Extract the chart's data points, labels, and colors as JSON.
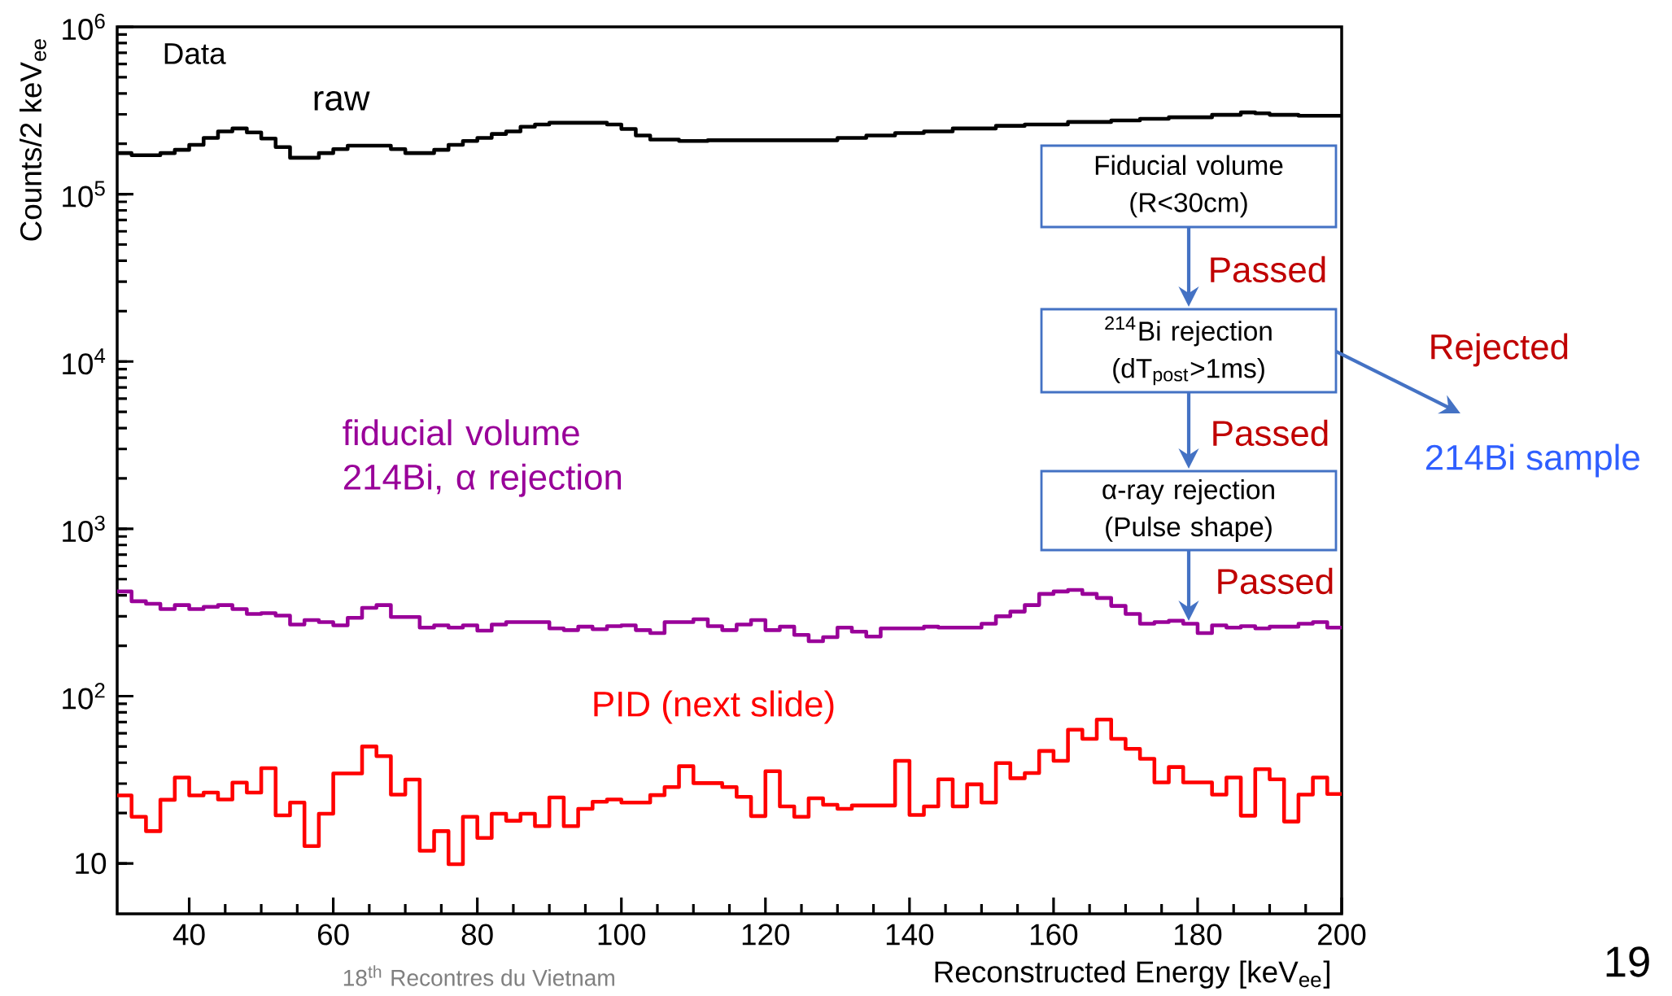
{
  "chart_data": {
    "type": "histogram",
    "xlabel": "Reconstructed Energy [keV$_{ee}$]",
    "ylabel": "Counts/2 keV$_{ee}$",
    "bins": [
      30,
      32,
      34,
      36,
      38,
      40,
      42,
      44,
      46,
      48,
      50,
      52,
      54,
      56,
      58,
      60,
      62,
      64,
      66,
      68,
      70,
      72,
      74,
      76,
      78,
      80,
      82,
      84,
      86,
      88,
      90,
      92,
      94,
      96,
      98,
      100,
      102,
      104,
      106,
      108,
      110,
      112,
      114,
      116,
      118,
      120,
      122,
      124,
      126,
      128,
      130,
      132,
      134,
      136,
      138,
      140,
      142,
      144,
      146,
      148,
      150,
      152,
      154,
      156,
      158,
      160,
      162,
      164,
      166,
      168,
      170,
      172,
      174,
      176,
      178,
      180,
      182,
      184,
      186,
      188,
      190,
      192,
      194,
      196,
      198,
      200
    ],
    "series": [
      {
        "name": "raw",
        "color": "#000000",
        "values": [
          176000,
          171000,
          171000,
          176000,
          184000,
          197000,
          217000,
          237000,
          247000,
          234000,
          215000,
          191000,
          165000,
          165000,
          176000,
          186000,
          195000,
          195000,
          195000,
          186000,
          176000,
          176000,
          184000,
          197000,
          208000,
          217000,
          229000,
          237000,
          253000,
          261000,
          267000,
          267000,
          267000,
          267000,
          261000,
          245000,
          224000,
          212000,
          212000,
          208000,
          208000,
          210000,
          210000,
          210000,
          210000,
          210000,
          210000,
          210000,
          210000,
          210000,
          217000,
          217000,
          224000,
          224000,
          232000,
          232000,
          237000,
          237000,
          247000,
          247000,
          247000,
          256000,
          256000,
          261000,
          261000,
          261000,
          270000,
          270000,
          270000,
          276000,
          276000,
          282000,
          282000,
          288000,
          288000,
          288000,
          298000,
          298000,
          308000,
          304000,
          298000,
          298000,
          294000,
          294000,
          294000
        ]
      },
      {
        "name": "fiducial volume 214Bi, α rejection",
        "color": "#990099",
        "values": [
          422,
          369,
          356,
          331,
          350,
          331,
          342,
          350,
          331,
          310,
          313,
          303,
          268,
          285,
          277,
          265,
          294,
          337,
          350,
          297,
          297,
          257,
          265,
          257,
          265,
          246,
          268,
          277,
          277,
          277,
          254,
          248,
          260,
          251,
          262,
          265,
          248,
          238,
          277,
          277,
          288,
          262,
          248,
          268,
          285,
          248,
          260,
          232,
          213,
          225,
          257,
          243,
          227,
          254,
          254,
          254,
          260,
          257,
          257,
          257,
          271,
          300,
          320,
          350,
          408,
          422,
          431,
          408,
          386,
          346,
          310,
          271,
          277,
          282,
          271,
          238,
          265,
          257,
          262,
          254,
          260,
          260,
          271,
          277,
          257
        ]
      },
      {
        "name": "PID (next slide)",
        "color": "#ff0000",
        "values": [
          25.5,
          19,
          15.6,
          24,
          32.6,
          25.5,
          26.5,
          24.1,
          30.4,
          26.5,
          37.1,
          19.4,
          23.1,
          12.7,
          19.8,
          34.5,
          34.5,
          50,
          43.8,
          25.8,
          31.7,
          11.9,
          15.6,
          9.9,
          19,
          14.2,
          19.8,
          18,
          19.8,
          16.7,
          24.8,
          16.7,
          21.2,
          23.4,
          24.1,
          23.1,
          23.1,
          25.6,
          28.6,
          38.1,
          30.2,
          30.2,
          28.6,
          25,
          19.2,
          35.6,
          21.9,
          19,
          24.5,
          22.4,
          21.2,
          22.2,
          22.2,
          22.2,
          41,
          19.5,
          21.9,
          31.8,
          21.9,
          29.7,
          23.1,
          39.8,
          32.3,
          34.7,
          47,
          41,
          63,
          55.5,
          72.4,
          55.5,
          48.4,
          42.2,
          30.5,
          37.7,
          30.5,
          30.5,
          25.8,
          32.6,
          19.3,
          36.6,
          31.8,
          17.8,
          25.8,
          32.6,
          26
        ]
      }
    ],
    "xlim": [
      30,
      200
    ],
    "xticks": [
      40,
      60,
      80,
      100,
      120,
      140,
      160,
      180,
      200
    ],
    "ylim": [
      5,
      1000000
    ],
    "yticks": [
      10,
      {
        "value": 100,
        "label": "10$^{2}$"
      },
      {
        "value": 1000,
        "label": "10$^{3}$"
      },
      {
        "value": 10000,
        "label": "10$^{4}$"
      },
      {
        "value": 100000,
        "label": "10$^{5}$"
      },
      {
        "value": 1000000,
        "label": "10$^{6}$"
      }
    ],
    "log": true,
    "legend": false,
    "annotations": [
      "Data",
      "Fiducial volume (R<30cm)",
      "$^{214}$Bi rejection (dT$_{post}$>1ms)",
      "α-ray rejection (Pulse shape)",
      "Passed",
      "Passed",
      "Passed",
      "Rejected",
      "214Bi sample",
      "18$^{th}$ Recontres du Vietnam",
      "19"
    ]
  }
}
